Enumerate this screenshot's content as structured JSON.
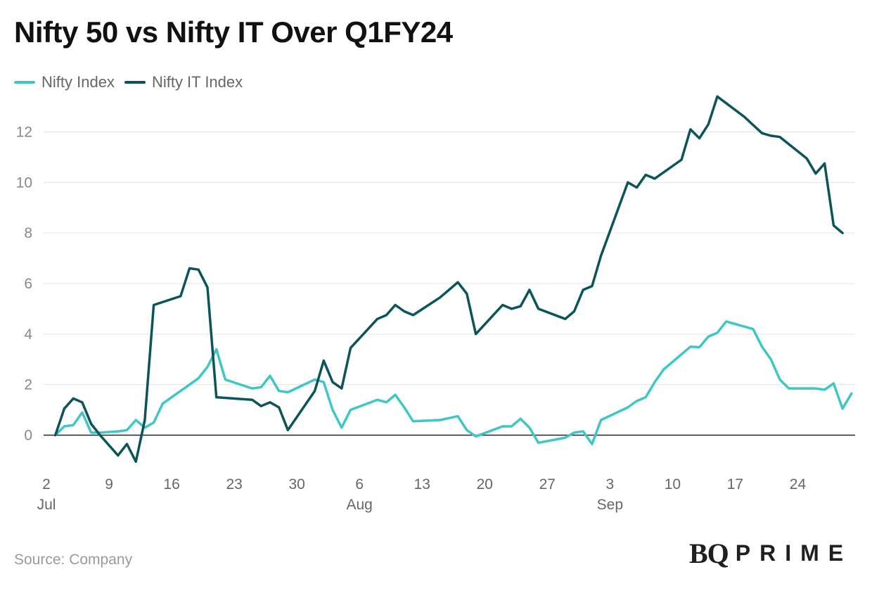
{
  "chart_data": {
    "type": "line",
    "title": "Nifty 50 vs Nifty IT Over Q1FY24",
    "xlabel": "",
    "ylabel": "",
    "ylim": [
      -1.6,
      13.6
    ],
    "xlim": [
      0,
      89
    ],
    "yticks": [
      0,
      2,
      4,
      6,
      8,
      10,
      12
    ],
    "grid": "horizontal",
    "legend_position": "top-left",
    "x_ticks": [
      {
        "x": 0,
        "day": "2",
        "month": "Jul"
      },
      {
        "x": 7,
        "day": "9",
        "month": ""
      },
      {
        "x": 14,
        "day": "16",
        "month": ""
      },
      {
        "x": 21,
        "day": "23",
        "month": ""
      },
      {
        "x": 28,
        "day": "30",
        "month": ""
      },
      {
        "x": 35,
        "day": "6",
        "month": "Aug"
      },
      {
        "x": 42,
        "day": "13",
        "month": ""
      },
      {
        "x": 49,
        "day": "20",
        "month": ""
      },
      {
        "x": 56,
        "day": "27",
        "month": ""
      },
      {
        "x": 63,
        "day": "3",
        "month": "Sep"
      },
      {
        "x": 70,
        "day": "10",
        "month": ""
      },
      {
        "x": 77,
        "day": "17",
        "month": ""
      },
      {
        "x": 84,
        "day": "24",
        "month": ""
      }
    ],
    "series": [
      {
        "name": "Nifty Index",
        "color": "#3ec7c5",
        "points": [
          [
            1,
            0
          ],
          [
            2,
            0.35
          ],
          [
            3,
            0.4
          ],
          [
            4,
            0.9
          ],
          [
            5,
            0.1
          ],
          [
            6,
            0.1
          ],
          [
            8,
            0.15
          ],
          [
            9,
            0.2
          ],
          [
            10,
            0.6
          ],
          [
            11,
            0.3
          ],
          [
            12,
            0.5
          ],
          [
            13,
            1.25
          ],
          [
            16,
            2.0
          ],
          [
            17,
            2.25
          ],
          [
            18,
            2.7
          ],
          [
            19,
            3.4
          ],
          [
            20,
            2.2
          ],
          [
            23,
            1.85
          ],
          [
            24,
            1.9
          ],
          [
            25,
            2.35
          ],
          [
            26,
            1.75
          ],
          [
            27,
            1.7
          ],
          [
            30,
            2.2
          ],
          [
            31,
            2.1
          ],
          [
            32,
            1.0
          ],
          [
            33,
            0.3
          ],
          [
            34,
            1.0
          ],
          [
            37,
            1.4
          ],
          [
            38,
            1.3
          ],
          [
            39,
            1.6
          ],
          [
            40,
            1.1
          ],
          [
            41,
            0.55
          ],
          [
            44,
            0.6
          ],
          [
            46,
            0.75
          ],
          [
            47,
            0.2
          ],
          [
            48,
            -0.05
          ],
          [
            51,
            0.35
          ],
          [
            52,
            0.35
          ],
          [
            53,
            0.65
          ],
          [
            54,
            0.3
          ],
          [
            55,
            -0.3
          ],
          [
            58,
            -0.1
          ],
          [
            59,
            0.1
          ],
          [
            60,
            0.15
          ],
          [
            61,
            -0.35
          ],
          [
            62,
            0.6
          ],
          [
            65,
            1.1
          ],
          [
            66,
            1.35
          ],
          [
            67,
            1.5
          ],
          [
            68,
            2.1
          ],
          [
            69,
            2.6
          ],
          [
            72,
            3.5
          ],
          [
            73,
            3.48
          ],
          [
            74,
            3.9
          ],
          [
            75,
            4.05
          ],
          [
            76,
            4.5
          ],
          [
            79,
            4.2
          ],
          [
            80,
            3.5
          ],
          [
            81,
            3.0
          ],
          [
            82,
            2.2
          ],
          [
            83,
            1.85
          ],
          [
            86,
            1.85
          ],
          [
            87,
            1.8
          ],
          [
            88,
            2.05
          ],
          [
            89,
            1.05
          ],
          [
            90,
            1.65
          ]
        ]
      },
      {
        "name": "Nifty IT Index",
        "color": "#0b5457",
        "points": [
          [
            1,
            0
          ],
          [
            2,
            1.05
          ],
          [
            3,
            1.45
          ],
          [
            4,
            1.3
          ],
          [
            5,
            0.45
          ],
          [
            6,
            0
          ],
          [
            8,
            -0.8
          ],
          [
            9,
            -0.35
          ],
          [
            10,
            -1.05
          ],
          [
            11,
            0.6
          ],
          [
            12,
            5.15
          ],
          [
            15,
            5.5
          ],
          [
            16,
            6.6
          ],
          [
            17,
            6.55
          ],
          [
            18,
            5.85
          ],
          [
            19,
            1.5
          ],
          [
            23,
            1.4
          ],
          [
            24,
            1.15
          ],
          [
            25,
            1.3
          ],
          [
            26,
            1.1
          ],
          [
            27,
            0.2
          ],
          [
            30,
            1.75
          ],
          [
            31,
            2.95
          ],
          [
            32,
            2.1
          ],
          [
            33,
            1.85
          ],
          [
            34,
            3.45
          ],
          [
            37,
            4.6
          ],
          [
            38,
            4.75
          ],
          [
            39,
            5.15
          ],
          [
            40,
            4.9
          ],
          [
            41,
            4.75
          ],
          [
            44,
            5.45
          ],
          [
            46,
            6.05
          ],
          [
            47,
            5.6
          ],
          [
            48,
            4.0
          ],
          [
            51,
            5.15
          ],
          [
            52,
            5.0
          ],
          [
            53,
            5.1
          ],
          [
            54,
            5.75
          ],
          [
            55,
            5.0
          ],
          [
            58,
            4.6
          ],
          [
            59,
            4.9
          ],
          [
            60,
            5.75
          ],
          [
            61,
            5.9
          ],
          [
            62,
            7.1
          ],
          [
            65,
            10.0
          ],
          [
            66,
            9.8
          ],
          [
            67,
            10.3
          ],
          [
            68,
            10.15
          ],
          [
            71,
            10.9
          ],
          [
            72,
            12.1
          ],
          [
            73,
            11.75
          ],
          [
            74,
            12.3
          ],
          [
            75,
            13.4
          ],
          [
            78,
            12.6
          ],
          [
            80,
            11.95
          ],
          [
            81,
            11.85
          ],
          [
            82,
            11.8
          ],
          [
            85,
            10.95
          ],
          [
            86,
            10.35
          ],
          [
            87,
            10.75
          ],
          [
            88,
            8.3
          ],
          [
            89,
            8.0
          ]
        ]
      }
    ]
  },
  "legend": {
    "items": [
      {
        "label": "Nifty Index"
      },
      {
        "label": "Nifty IT Index"
      }
    ]
  },
  "footer": {
    "source": "Source: Company",
    "logo_bq": "BQ",
    "logo_prime": "PRIME"
  }
}
